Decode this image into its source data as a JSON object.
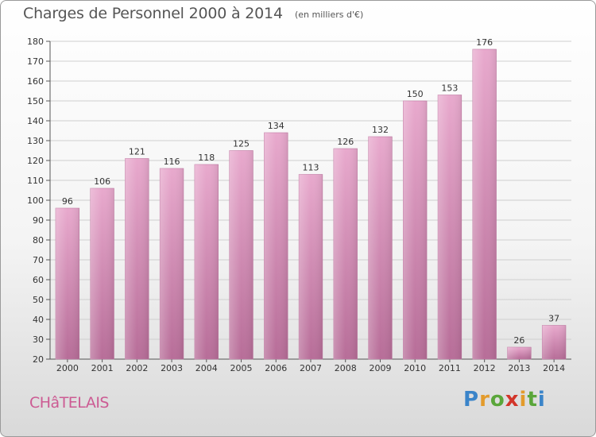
{
  "chart_data": {
    "type": "bar",
    "title": "Charges de Personnel 2000 à 2014",
    "subtitle": "(en milliers d'€)",
    "categories": [
      "2000",
      "2001",
      "2002",
      "2003",
      "2004",
      "2005",
      "2006",
      "2007",
      "2008",
      "2009",
      "2010",
      "2011",
      "2012",
      "2013",
      "2014"
    ],
    "values": [
      96,
      106,
      121,
      116,
      118,
      125,
      134,
      113,
      126,
      132,
      150,
      153,
      176,
      26,
      37
    ],
    "ylim": [
      20,
      180
    ],
    "yticks": [
      20,
      30,
      40,
      50,
      60,
      70,
      80,
      90,
      100,
      110,
      120,
      130,
      140,
      150,
      160,
      170,
      180
    ],
    "grid": true,
    "bar_color": "#d98fba"
  },
  "footer": {
    "location": "CHâTELAIS",
    "logo_letters": [
      "P",
      "r",
      "o",
      "x",
      "i",
      "t",
      "i"
    ],
    "logo_colors": [
      "#3a84c9",
      "#e39b2c",
      "#5aa63a",
      "#d2352a",
      "#e39b2c",
      "#5aa63a",
      "#3a84c9"
    ]
  }
}
